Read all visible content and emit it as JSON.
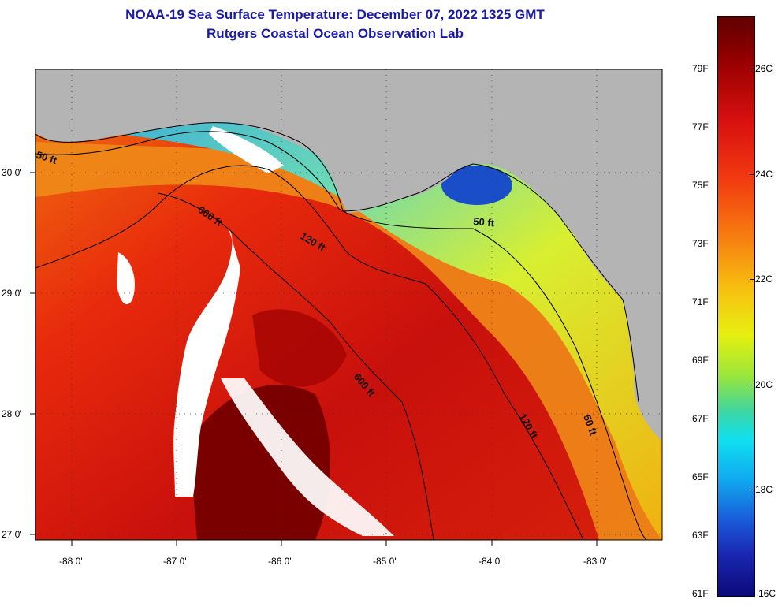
{
  "header": {
    "title_line1": "NOAA-19 Sea Surface Temperature:  December 07, 2022 1325 GMT",
    "title_line2": "Rutgers Coastal Ocean Observation Lab"
  },
  "map": {
    "lon_ticks": [
      "-88 0'",
      "-87 0'",
      "-86 0'",
      "-85 0'",
      "-84 0'",
      "-83 0'"
    ],
    "lat_ticks": [
      "30 0'",
      "29 0'",
      "28 0'",
      "27 0'"
    ],
    "contour_labels": {
      "c50_west": "50 ft",
      "c600_north": "600 ft",
      "c120_north": "120 ft",
      "c50_east": "50 ft",
      "c600_south": "600 ft",
      "c120_south": "120 ft",
      "c50_south": "50 ft"
    },
    "colors": {
      "land": "#b4b4b4",
      "cloud": "#ffffff",
      "warm": "#c8100c",
      "cold": "#1a5ad8"
    }
  },
  "colorbar": {
    "fahrenheit": [
      "79F",
      "77F",
      "75F",
      "73F",
      "71F",
      "69F",
      "67F",
      "65F",
      "63F",
      "61F"
    ],
    "celsius": [
      "26C",
      "24C",
      "22C",
      "20C",
      "18C",
      "16C"
    ]
  }
}
